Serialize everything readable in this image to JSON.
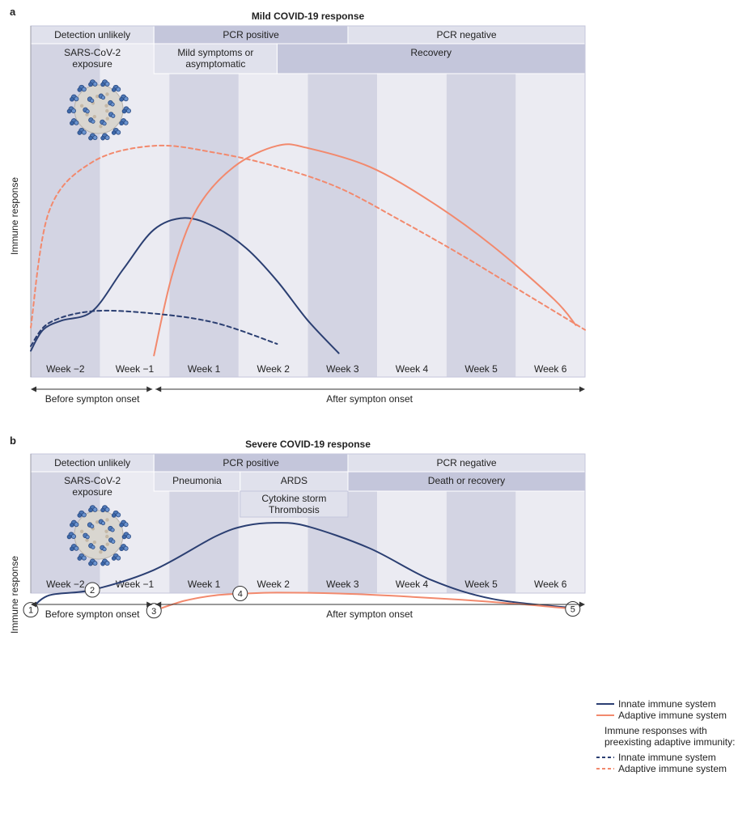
{
  "colors": {
    "band_dark": "#d3d4e3",
    "band_light": "#ebebf2",
    "header_dark": "#c4c6db",
    "header_light": "#e0e1ec",
    "innate": "#2b3f72",
    "adaptive": "#f2896d",
    "axis": "#333333"
  },
  "weeks": [
    "Week −2",
    "Week −1",
    "Week 1",
    "Week 2",
    "Week 3",
    "Week 4",
    "Week 5",
    "Week 6"
  ],
  "onset": {
    "before": "Before sympton onset",
    "after": "After sympton onset"
  },
  "ylabel": "Immune response",
  "legend": {
    "innate": "Innate immune system",
    "adaptive": "Adaptive immune system",
    "preexisting_line1": "Immune responses with",
    "preexisting_line2": "preexisting adaptive immunity:",
    "innate_pre": "Innate immune system",
    "adaptive_pre": "Adaptive immune system"
  },
  "chart_data": [
    {
      "type": "line",
      "panel": "a",
      "title": "Mild COVID-19 response",
      "ylabel": "Immune response",
      "x_categories": [
        "Week −2",
        "Week −1",
        "Week 1",
        "Week 2",
        "Week 3",
        "Week 4",
        "Week 5",
        "Week 6"
      ],
      "x_range": [
        -2.5,
        6.5
      ],
      "y_range": [
        0,
        100
      ],
      "header_row1": [
        {
          "label": "Detection unlikely",
          "from": -2.5,
          "to": -0.5,
          "tone": "light"
        },
        {
          "label": "PCR positive",
          "from": -0.5,
          "to": 2.65,
          "tone": "dark"
        },
        {
          "label": "PCR negative",
          "from": 2.65,
          "to": 6.5,
          "tone": "light"
        }
      ],
      "header_row2": [
        {
          "lines": [
            "SARS-CoV-2",
            "exposure"
          ],
          "from": -2.5,
          "to": -0.5,
          "tone": "none"
        },
        {
          "lines": [
            "Mild symptoms or",
            "asymptomatic"
          ],
          "from": -0.5,
          "to": 1.5,
          "tone": "light"
        },
        {
          "lines": [
            "Recovery"
          ],
          "from": 1.5,
          "to": 6.5,
          "tone": "dark"
        }
      ],
      "series": [
        {
          "name": "Innate immune system",
          "style": "solid",
          "color_key": "innate",
          "points": [
            [
              -2.5,
              5
            ],
            [
              -2.3,
              14
            ],
            [
              -2.0,
              18
            ],
            [
              -1.5,
              22
            ],
            [
              -1.0,
              40
            ],
            [
              -0.5,
              57
            ],
            [
              0.0,
              62
            ],
            [
              0.5,
              58
            ],
            [
              1.0,
              49
            ],
            [
              1.5,
              35
            ],
            [
              2.0,
              18
            ],
            [
              2.5,
              4
            ]
          ]
        },
        {
          "name": "Adaptive immune system",
          "style": "solid",
          "color_key": "adaptive",
          "points": [
            [
              -0.5,
              3
            ],
            [
              -0.2,
              38
            ],
            [
              0.2,
              66
            ],
            [
              0.8,
              84
            ],
            [
              1.5,
              93
            ],
            [
              2.0,
              92
            ],
            [
              3.0,
              84
            ],
            [
              4.0,
              69
            ],
            [
              5.0,
              50
            ],
            [
              6.0,
              27
            ],
            [
              6.35,
              16
            ]
          ]
        },
        {
          "name": "Innate immune system",
          "style": "dashed",
          "color_key": "innate",
          "points": [
            [
              -2.5,
              7
            ],
            [
              -2.2,
              17
            ],
            [
              -1.5,
              22
            ],
            [
              -0.5,
              21
            ],
            [
              0.5,
              17
            ],
            [
              1.5,
              8
            ]
          ]
        },
        {
          "name": "Adaptive immune system",
          "style": "dashed",
          "color_key": "adaptive",
          "points": [
            [
              -2.5,
              15
            ],
            [
              -2.2,
              65
            ],
            [
              -1.5,
              86
            ],
            [
              -0.5,
              93
            ],
            [
              0.5,
              90
            ],
            [
              1.5,
              84
            ],
            [
              2.5,
              75
            ],
            [
              3.5,
              61
            ],
            [
              4.5,
              46
            ],
            [
              5.5,
              30
            ],
            [
              6.5,
              14
            ]
          ]
        }
      ],
      "annotations": []
    },
    {
      "type": "line",
      "panel": "b",
      "title": "Severe COVID-19 response",
      "ylabel": "Immune response",
      "x_categories": [
        "Week −2",
        "Week −1",
        "Week 1",
        "Week 2",
        "Week 3",
        "Week 4",
        "Week 5",
        "Week 6"
      ],
      "x_range": [
        -2.5,
        6.5
      ],
      "y_range": [
        0,
        100
      ],
      "header_row1": [
        {
          "label": "Detection unlikely",
          "from": -2.5,
          "to": -0.5,
          "tone": "light"
        },
        {
          "label": "PCR positive",
          "from": -0.5,
          "to": 2.65,
          "tone": "dark"
        },
        {
          "label": "PCR negative",
          "from": 2.65,
          "to": 6.5,
          "tone": "light"
        }
      ],
      "header_row2": [
        {
          "lines": [
            "SARS-CoV-2",
            "exposure"
          ],
          "from": -2.5,
          "to": -0.5,
          "tone": "none"
        },
        {
          "lines": [
            "Pneumonia"
          ],
          "from": -0.5,
          "to": 0.9,
          "tone": "light"
        },
        {
          "lines": [
            "ARDS"
          ],
          "from": 0.9,
          "to": 2.65,
          "tone": "light"
        },
        {
          "lines": [
            "Death or recovery"
          ],
          "from": 2.65,
          "to": 6.5,
          "tone": "dark"
        }
      ],
      "header_row3": [
        {
          "lines": [
            "Cytokine storm",
            "Thrombosis"
          ],
          "from": 0.9,
          "to": 2.65,
          "tone": "light"
        }
      ],
      "series": [
        {
          "name": "Innate immune system",
          "style": "solid",
          "color_key": "innate",
          "points": [
            [
              -2.5,
              3
            ],
            [
              -2.2,
              19
            ],
            [
              -1.5,
              25
            ],
            [
              -0.5,
              47
            ],
            [
              0.5,
              84
            ],
            [
              1.0,
              96
            ],
            [
              1.5,
              99
            ],
            [
              2.0,
              95
            ],
            [
              3.0,
              71
            ],
            [
              4.0,
              36
            ],
            [
              5.0,
              15
            ],
            [
              6.3,
              5
            ]
          ]
        },
        {
          "name": "Adaptive immune system",
          "style": "solid",
          "color_key": "adaptive",
          "points": [
            [
              -0.5,
              2
            ],
            [
              0.0,
              13
            ],
            [
              0.5,
              19
            ],
            [
              1.0,
              21
            ],
            [
              1.5,
              22
            ],
            [
              2.5,
              21
            ],
            [
              3.5,
              18
            ],
            [
              4.5,
              14
            ],
            [
              5.5,
              9
            ],
            [
              6.3,
              4
            ]
          ]
        }
      ],
      "annotations": [
        {
          "label": "1",
          "x": -2.5,
          "y": 3
        },
        {
          "label": "2",
          "x": -1.5,
          "y": 25
        },
        {
          "label": "3",
          "x": -0.5,
          "y": 2
        },
        {
          "label": "4",
          "x": 0.9,
          "y": 21
        },
        {
          "label": "5",
          "x": 6.3,
          "y": 4
        }
      ]
    }
  ]
}
